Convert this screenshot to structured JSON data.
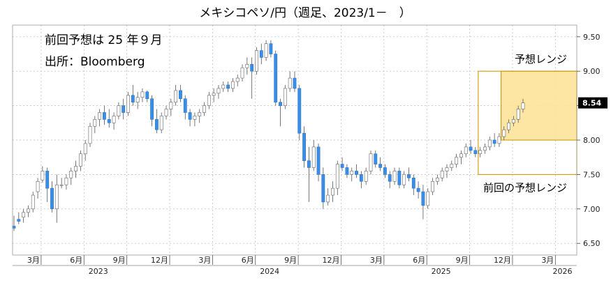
{
  "chart_data": {
    "type": "candlestick",
    "title": "メキシコペソ/円（週足、2023/1－　）",
    "notes": [
      "前回予想は 25 年９月",
      "出所：Bloomberg"
    ],
    "ylim": [
      6.33,
      9.67
    ],
    "yticks": [
      "6.50",
      "7.00",
      "7.50",
      "8.00",
      "8.50",
      "9.00",
      "9.50"
    ],
    "grid": true,
    "y_axis_position": "right",
    "x_months": [
      {
        "label": "3月",
        "t": 2
      },
      {
        "label": "6月",
        "t": 5
      },
      {
        "label": "9月",
        "t": 8
      },
      {
        "label": "12月",
        "t": 11
      },
      {
        "label": "3月",
        "t": 14
      },
      {
        "label": "6月",
        "t": 17
      },
      {
        "label": "9月",
        "t": 20
      },
      {
        "label": "12月",
        "t": 23
      },
      {
        "label": "3月",
        "t": 26
      },
      {
        "label": "6月",
        "t": 29
      },
      {
        "label": "9月",
        "t": 32
      },
      {
        "label": "12月",
        "t": 35
      },
      {
        "label": "3月",
        "t": 38
      }
    ],
    "x_years": [
      {
        "label": "2023",
        "t": 6
      },
      {
        "label": "2024",
        "t": 18
      },
      {
        "label": "2025",
        "t": 30
      },
      {
        "label": "2026",
        "t": 38.5
      }
    ],
    "x_range_months": [
      0,
      39.5
    ],
    "last_value": "8.54",
    "up_color": "#ffffff",
    "down_color": "#3b8ee6",
    "forecast_ranges": [
      {
        "label": "予想レンジ",
        "y_low": 8.0,
        "y_high": 9.0,
        "t_start": 34.2,
        "t_end": 39.5,
        "fill": "#fde39a",
        "stroke": "#d39a00"
      },
      {
        "label": "前回の予想レンジ",
        "y_low": 7.5,
        "y_high": 9.0,
        "t_start": 32.6,
        "t_end": 39.5,
        "fill": "none",
        "stroke": "#d39a00"
      }
    ],
    "candles": [
      [
        6.75,
        6.9,
        6.68,
        6.72
      ],
      [
        6.85,
        6.95,
        6.78,
        6.82
      ],
      [
        6.88,
        7.0,
        6.8,
        6.95
      ],
      [
        6.95,
        7.05,
        6.88,
        7.0
      ],
      [
        7.0,
        7.25,
        6.95,
        7.2
      ],
      [
        7.25,
        7.45,
        7.15,
        7.4
      ],
      [
        7.42,
        7.62,
        7.38,
        7.55
      ],
      [
        7.55,
        7.6,
        7.1,
        7.3
      ],
      [
        7.3,
        7.4,
        6.95,
        7.0
      ],
      [
        7.0,
        7.5,
        6.8,
        7.35
      ],
      [
        7.35,
        7.45,
        7.3,
        7.35
      ],
      [
        7.35,
        7.5,
        7.28,
        7.45
      ],
      [
        7.45,
        7.6,
        7.35,
        7.55
      ],
      [
        7.55,
        7.7,
        7.45,
        7.62
      ],
      [
        7.62,
        7.85,
        7.55,
        7.8
      ],
      [
        7.8,
        8.0,
        7.7,
        7.95
      ],
      [
        7.95,
        8.25,
        7.9,
        8.2
      ],
      [
        8.2,
        8.35,
        8.1,
        8.3
      ],
      [
        8.3,
        8.45,
        8.2,
        8.4
      ],
      [
        8.4,
        8.5,
        8.22,
        8.3
      ],
      [
        8.3,
        8.45,
        8.18,
        8.25
      ],
      [
        8.25,
        8.4,
        8.15,
        8.35
      ],
      [
        8.35,
        8.55,
        8.3,
        8.5
      ],
      [
        8.5,
        8.6,
        8.3,
        8.4
      ],
      [
        8.4,
        8.7,
        8.35,
        8.65
      ],
      [
        8.65,
        8.8,
        8.5,
        8.55
      ],
      [
        8.55,
        8.7,
        8.45,
        8.62
      ],
      [
        8.62,
        8.75,
        8.55,
        8.7
      ],
      [
        8.7,
        8.72,
        8.55,
        8.6
      ],
      [
        8.6,
        8.65,
        8.2,
        8.3
      ],
      [
        8.3,
        8.45,
        8.1,
        8.15
      ],
      [
        8.15,
        8.4,
        8.1,
        8.35
      ],
      [
        8.35,
        8.5,
        8.3,
        8.45
      ],
      [
        8.45,
        8.6,
        8.35,
        8.55
      ],
      [
        8.55,
        8.8,
        8.5,
        8.72
      ],
      [
        8.72,
        8.8,
        8.55,
        8.6
      ],
      [
        8.6,
        8.65,
        8.3,
        8.4
      ],
      [
        8.4,
        8.45,
        8.2,
        8.3
      ],
      [
        8.3,
        8.4,
        8.2,
        8.35
      ],
      [
        8.35,
        8.45,
        8.25,
        8.4
      ],
      [
        8.4,
        8.55,
        8.35,
        8.5
      ],
      [
        8.5,
        8.7,
        8.45,
        8.65
      ],
      [
        8.65,
        8.75,
        8.55,
        8.68
      ],
      [
        8.68,
        8.8,
        8.6,
        8.75
      ],
      [
        8.75,
        8.85,
        8.7,
        8.8
      ],
      [
        8.8,
        8.85,
        8.7,
        8.75
      ],
      [
        8.75,
        8.9,
        8.7,
        8.85
      ],
      [
        8.85,
        8.95,
        8.78,
        8.9
      ],
      [
        8.9,
        9.1,
        8.85,
        9.05
      ],
      [
        9.05,
        9.2,
        8.95,
        9.1
      ],
      [
        9.1,
        9.2,
        8.6,
        9.0
      ],
      [
        9.0,
        9.35,
        8.95,
        9.3
      ],
      [
        9.3,
        9.4,
        9.1,
        9.2
      ],
      [
        9.2,
        9.45,
        9.15,
        9.4
      ],
      [
        9.4,
        9.45,
        9.2,
        9.25
      ],
      [
        9.25,
        9.3,
        8.5,
        8.55
      ],
      [
        8.55,
        8.6,
        8.2,
        8.5
      ],
      [
        8.5,
        8.8,
        8.45,
        8.75
      ],
      [
        8.75,
        9.0,
        8.7,
        8.9
      ],
      [
        8.9,
        9.0,
        8.7,
        8.75
      ],
      [
        8.75,
        8.8,
        8.0,
        8.1
      ],
      [
        8.1,
        8.2,
        7.6,
        7.7
      ],
      [
        7.7,
        7.9,
        7.1,
        7.6
      ],
      [
        7.6,
        8.0,
        7.55,
        7.9
      ],
      [
        7.9,
        7.95,
        7.4,
        7.5
      ],
      [
        7.5,
        7.6,
        7.0,
        7.1
      ],
      [
        7.1,
        7.3,
        7.05,
        7.2
      ],
      [
        7.2,
        7.4,
        7.1,
        7.3
      ],
      [
        7.3,
        7.7,
        7.2,
        7.65
      ],
      [
        7.65,
        7.75,
        7.55,
        7.6
      ],
      [
        7.6,
        7.65,
        7.45,
        7.5
      ],
      [
        7.5,
        7.6,
        7.4,
        7.55
      ],
      [
        7.55,
        7.65,
        7.45,
        7.5
      ],
      [
        7.5,
        7.55,
        7.3,
        7.4
      ],
      [
        7.4,
        7.6,
        7.35,
        7.55
      ],
      [
        7.55,
        7.85,
        7.5,
        7.8
      ],
      [
        7.8,
        7.85,
        7.6,
        7.65
      ],
      [
        7.65,
        7.75,
        7.55,
        7.6
      ],
      [
        7.6,
        7.65,
        7.45,
        7.5
      ],
      [
        7.5,
        7.55,
        7.3,
        7.4
      ],
      [
        7.4,
        7.6,
        7.35,
        7.55
      ],
      [
        7.55,
        7.6,
        7.3,
        7.35
      ],
      [
        7.35,
        7.55,
        7.3,
        7.5
      ],
      [
        7.5,
        7.6,
        7.4,
        7.45
      ],
      [
        7.45,
        7.5,
        7.2,
        7.3
      ],
      [
        7.3,
        7.4,
        7.15,
        7.25
      ],
      [
        7.25,
        7.35,
        6.85,
        7.05
      ],
      [
        7.05,
        7.3,
        7.0,
        7.25
      ],
      [
        7.25,
        7.45,
        7.2,
        7.4
      ],
      [
        7.4,
        7.5,
        7.35,
        7.45
      ],
      [
        7.45,
        7.6,
        7.4,
        7.55
      ],
      [
        7.55,
        7.65,
        7.45,
        7.6
      ],
      [
        7.6,
        7.7,
        7.55,
        7.65
      ],
      [
        7.65,
        7.8,
        7.6,
        7.75
      ],
      [
        7.75,
        7.85,
        7.65,
        7.8
      ],
      [
        7.8,
        7.95,
        7.75,
        7.9
      ],
      [
        7.9,
        8.0,
        7.8,
        7.85
      ],
      [
        7.85,
        7.9,
        7.75,
        7.8
      ],
      [
        7.8,
        7.9,
        7.75,
        7.85
      ],
      [
        7.85,
        7.95,
        7.8,
        7.9
      ],
      [
        7.9,
        8.05,
        7.85,
        8.0
      ],
      [
        8.0,
        8.1,
        7.9,
        7.95
      ],
      [
        7.95,
        8.1,
        7.9,
        8.05
      ],
      [
        8.05,
        8.2,
        8.0,
        8.15
      ],
      [
        8.15,
        8.3,
        8.1,
        8.25
      ],
      [
        8.25,
        8.35,
        8.2,
        8.3
      ],
      [
        8.3,
        8.5,
        8.25,
        8.45
      ],
      [
        8.45,
        8.6,
        8.4,
        8.54
      ]
    ]
  }
}
